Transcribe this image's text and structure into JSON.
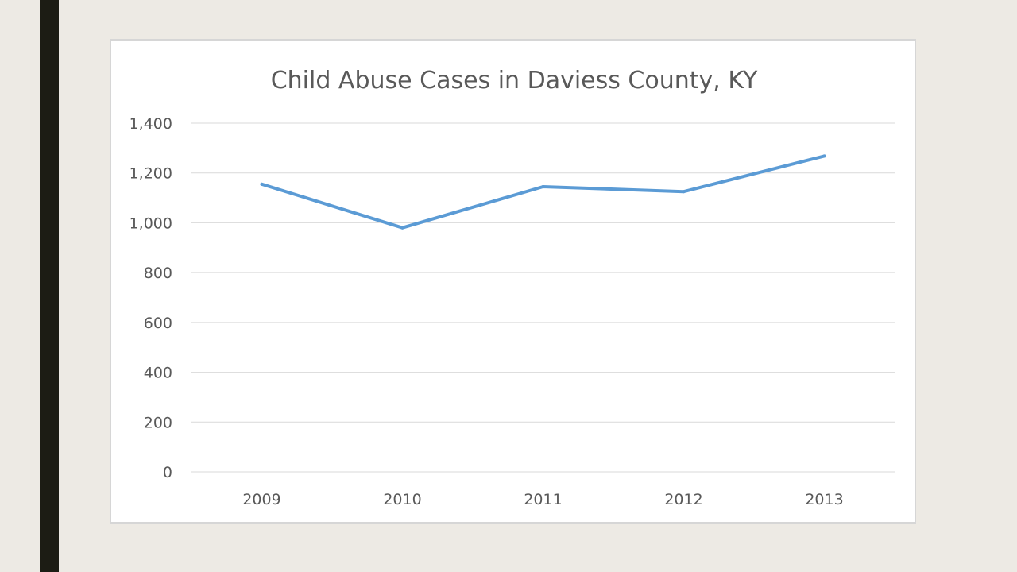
{
  "chart_data": {
    "type": "line",
    "title": "Child Abuse Cases in Daviess County, KY",
    "categories": [
      "2009",
      "2010",
      "2011",
      "2012",
      "2013"
    ],
    "series": [
      {
        "values": [
          1155,
          980,
          1145,
          1125,
          1268
        ]
      }
    ],
    "y_ticks": [
      "0",
      "200",
      "400",
      "600",
      "800",
      "1,000",
      "1,200",
      "1,400"
    ],
    "ylim": [
      0,
      1400
    ],
    "grid": true,
    "legend": "none",
    "line_color": "#5b9bd5"
  }
}
